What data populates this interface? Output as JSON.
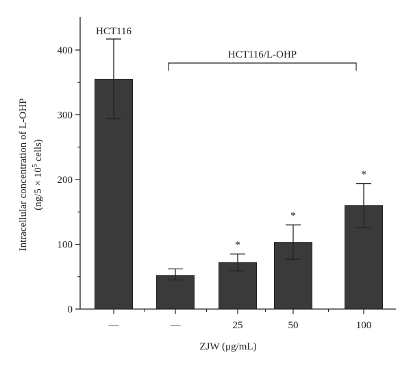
{
  "chart_data": {
    "type": "bar",
    "categories": [
      "—",
      "—",
      "25",
      "50",
      "100"
    ],
    "values": [
      355,
      52,
      72,
      103,
      160
    ],
    "errors": [
      [
        294,
        417
      ],
      [
        45,
        62
      ],
      [
        59,
        85
      ],
      [
        77,
        130
      ],
      [
        126,
        194
      ]
    ],
    "significance": [
      "",
      "",
      "*",
      "*",
      "*"
    ],
    "xlabel": "ZJW (μg/mL)",
    "ylabel_line1": "Intracellular concentration of L-OHP",
    "ylabel_line2_prefix": "(ng/5 × 10",
    "ylabel_line2_sup": "5",
    "ylabel_line2_suffix": " cells)",
    "ylim": [
      0,
      450
    ],
    "yticks": [
      0,
      100,
      200,
      300,
      400
    ],
    "bar_color": "#3a3a3a",
    "annotations": {
      "group1": "HCT116",
      "group2": "HCT116/L-OHP"
    }
  }
}
